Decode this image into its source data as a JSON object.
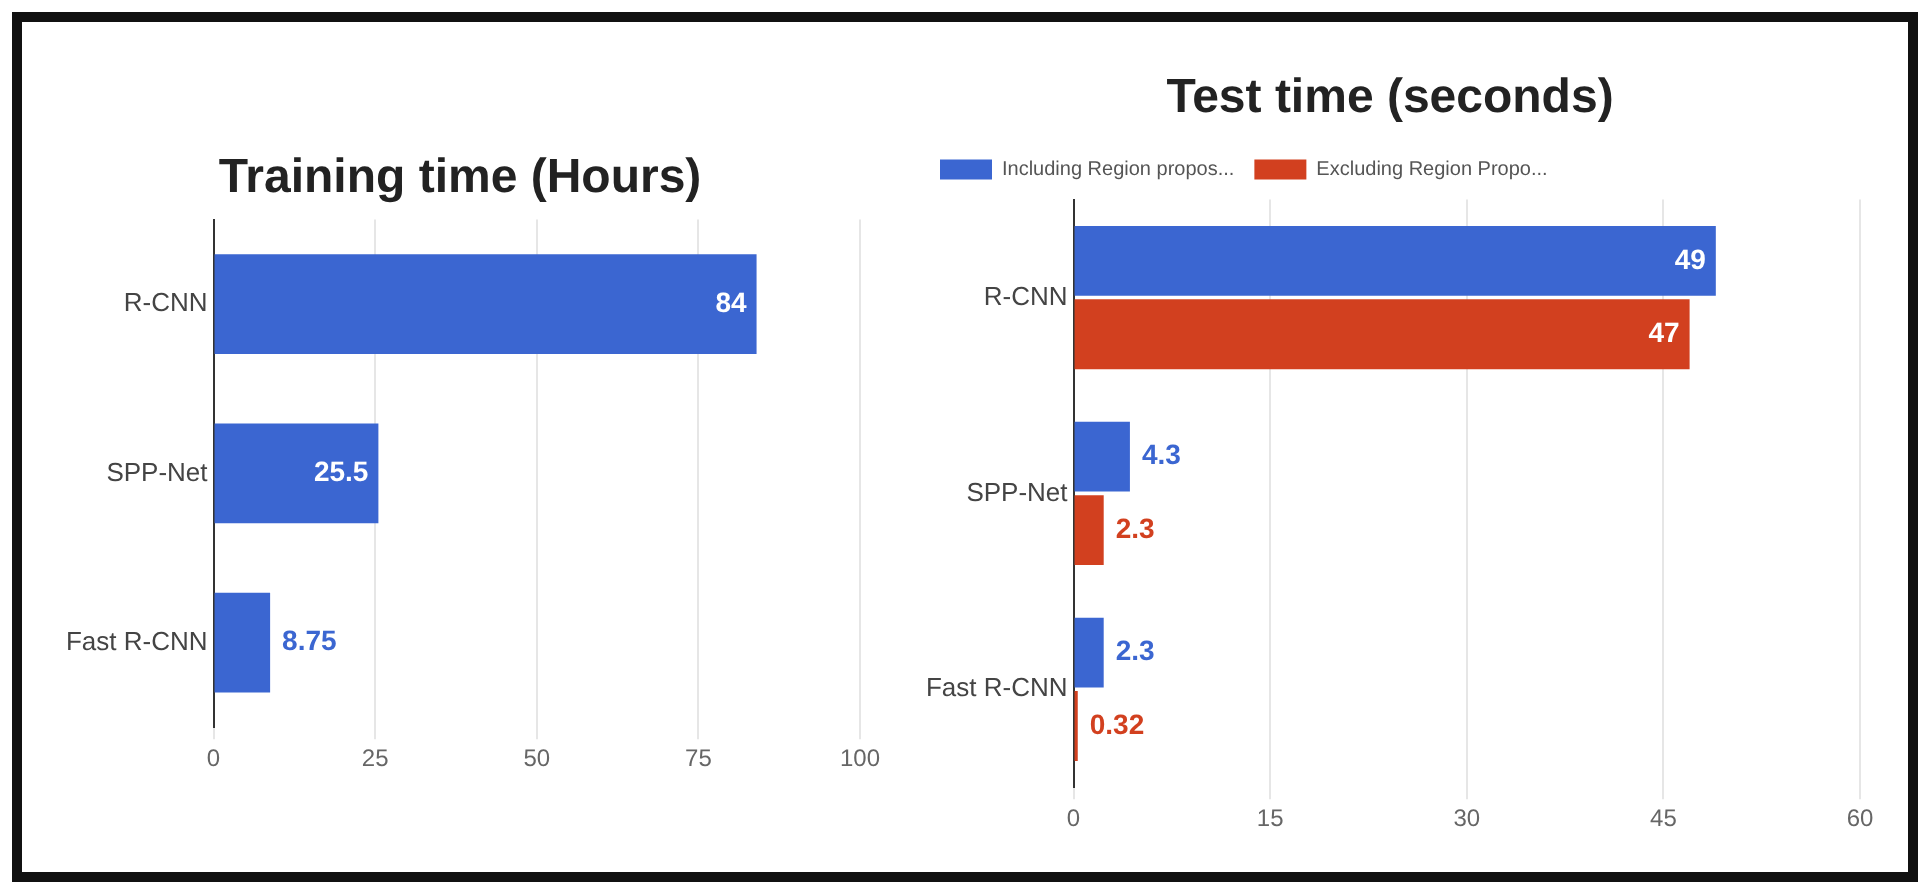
{
  "chart_data": [
    {
      "type": "bar",
      "orientation": "horizontal",
      "title": "Training time (Hours)",
      "categories": [
        "R-CNN",
        "SPP-Net",
        "Fast R-CNN"
      ],
      "values": [
        84,
        25.5,
        8.75
      ],
      "color": "#3b66d1",
      "xlim": [
        0,
        100
      ],
      "xticks": [
        0,
        25,
        50,
        75,
        100
      ],
      "grid": "x",
      "data_labels": true
    },
    {
      "type": "bar",
      "orientation": "horizontal",
      "title": "Test time (seconds)",
      "categories": [
        "R-CNN",
        "SPP-Net",
        "Fast R-CNN"
      ],
      "series": [
        {
          "name": "Including Region propos...",
          "color": "#3b66d1",
          "values": [
            49,
            4.3,
            2.3
          ]
        },
        {
          "name": "Excluding Region Propo...",
          "color": "#d2401f",
          "values": [
            47,
            2.3,
            0.32
          ]
        }
      ],
      "xlim": [
        0,
        60
      ],
      "xticks": [
        0,
        15,
        30,
        45,
        60
      ],
      "grid": "x",
      "legend": "top",
      "data_labels": true
    }
  ]
}
